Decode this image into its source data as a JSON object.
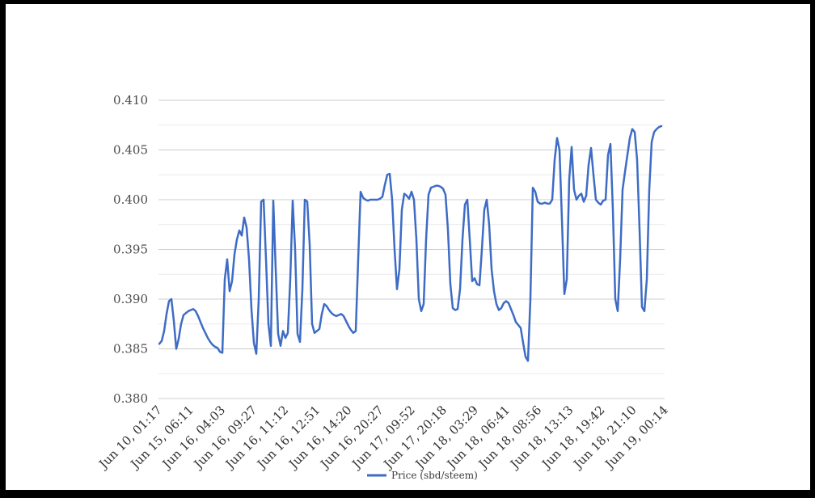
{
  "window": {
    "background": "#ffffff",
    "frame_color": "#000000"
  },
  "legend": {
    "label": "Price (sbd/steem)"
  },
  "chart_data": {
    "type": "line",
    "title": "",
    "xlabel": "",
    "ylabel": "",
    "grid": true,
    "legend_position": "bottom",
    "ylim": [
      0.38,
      0.41
    ],
    "yticks": [
      0.38,
      0.385,
      0.39,
      0.395,
      0.4,
      0.405,
      0.41
    ],
    "ytick_labels": [
      "0.380",
      "0.385",
      "0.390",
      "0.395",
      "0.400",
      "0.405",
      "0.410"
    ],
    "minor_grid_step": 0.0025,
    "categories": [
      "Jun 10, 01:17",
      "Jun 15, 06:11",
      "Jun 16, 04:03",
      "Jun 16, 09:27",
      "Jun 16, 11:12",
      "Jun 16, 12:51",
      "Jun 16, 14:20",
      "Jun 16, 20:27",
      "Jun 17, 09:52",
      "Jun 17, 20:18",
      "Jun 18, 03:29",
      "Jun 18, 06:41",
      "Jun 18, 08:56",
      "Jun 18, 13:13",
      "Jun 18, 19:42",
      "Jun 18, 21:10",
      "Jun 19, 00:14"
    ],
    "series": [
      {
        "name": "Price (sbd/steem)",
        "color": "#3e6cc5",
        "values": [
          0.3855,
          0.3858,
          0.3868,
          0.3885,
          0.3898,
          0.39,
          0.3878,
          0.385,
          0.386,
          0.3875,
          0.3884,
          0.3886,
          0.3888,
          0.3889,
          0.389,
          0.3888,
          0.3883,
          0.3877,
          0.3871,
          0.3866,
          0.3861,
          0.3857,
          0.3854,
          0.3852,
          0.3851,
          0.3847,
          0.3846,
          0.392,
          0.394,
          0.3908,
          0.3918,
          0.3945,
          0.396,
          0.3969,
          0.3964,
          0.3982,
          0.3972,
          0.394,
          0.389,
          0.3856,
          0.3845,
          0.39,
          0.3998,
          0.4,
          0.394,
          0.3875,
          0.3853,
          0.3999,
          0.393,
          0.3865,
          0.3853,
          0.3868,
          0.3861,
          0.3866,
          0.392,
          0.3999,
          0.395,
          0.3865,
          0.3857,
          0.391,
          0.4,
          0.3998,
          0.3955,
          0.3875,
          0.3866,
          0.3868,
          0.387,
          0.3885,
          0.3895,
          0.3893,
          0.3889,
          0.3886,
          0.3884,
          0.3883,
          0.3884,
          0.3885,
          0.3883,
          0.3878,
          0.3873,
          0.3869,
          0.3866,
          0.3868,
          0.394,
          0.4008,
          0.4002,
          0.4,
          0.3999,
          0.4,
          0.4,
          0.4,
          0.4,
          0.4001,
          0.4003,
          0.4015,
          0.4025,
          0.4026,
          0.4,
          0.395,
          0.391,
          0.393,
          0.399,
          0.4006,
          0.4004,
          0.4001,
          0.4008,
          0.4,
          0.396,
          0.39,
          0.3888,
          0.3895,
          0.396,
          0.4005,
          0.4012,
          0.4013,
          0.4014,
          0.4014,
          0.4013,
          0.4011,
          0.4005,
          0.397,
          0.3915,
          0.3891,
          0.3889,
          0.389,
          0.391,
          0.396,
          0.3995,
          0.4,
          0.396,
          0.3918,
          0.3921,
          0.3915,
          0.3914,
          0.395,
          0.399,
          0.4,
          0.3975,
          0.393,
          0.3908,
          0.3895,
          0.3889,
          0.3891,
          0.3896,
          0.3898,
          0.3896,
          0.389,
          0.3884,
          0.3877,
          0.3874,
          0.3871,
          0.3856,
          0.3842,
          0.3838,
          0.39,
          0.4012,
          0.4008,
          0.3998,
          0.3996,
          0.3996,
          0.3997,
          0.3996,
          0.3996,
          0.4,
          0.404,
          0.4062,
          0.405,
          0.398,
          0.3905,
          0.392,
          0.402,
          0.4053,
          0.401,
          0.4,
          0.4004,
          0.4006,
          0.3998,
          0.4004,
          0.4035,
          0.4052,
          0.4025,
          0.4,
          0.3997,
          0.3995,
          0.3999,
          0.4,
          0.4045,
          0.4056,
          0.399,
          0.39,
          0.3888,
          0.394,
          0.401,
          0.4028,
          0.4045,
          0.4062,
          0.4071,
          0.4068,
          0.404,
          0.397,
          0.3892,
          0.3888,
          0.392,
          0.401,
          0.4058,
          0.4068,
          0.4071,
          0.4073,
          0.4074
        ]
      }
    ]
  }
}
